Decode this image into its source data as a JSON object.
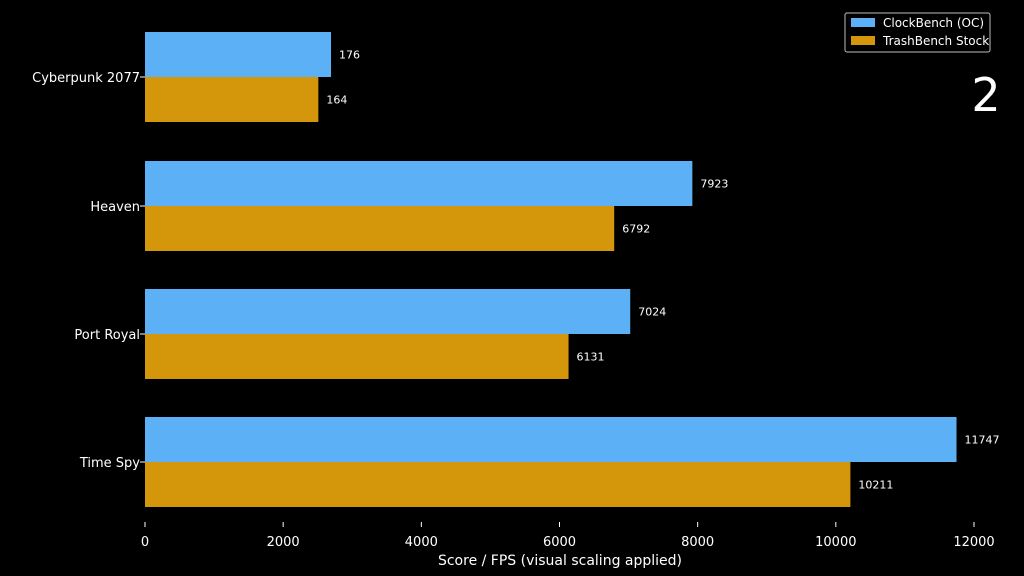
{
  "corner_label": "2",
  "chart_data": {
    "type": "bar",
    "orientation": "horizontal",
    "categories": [
      "Cyberpunk 2077",
      "Heaven",
      "Port Royal",
      "Time Spy"
    ],
    "series": [
      {
        "name": "ClockBench (OC)",
        "color": "#5cb0f6",
        "values": [
          176,
          7923,
          7024,
          11747
        ]
      },
      {
        "name": "TrashBench Stock",
        "color": "#d4960b",
        "values": [
          164,
          6792,
          6131,
          10211
        ]
      }
    ],
    "visual_scaling": {
      "Cyberpunk 2077": 15.3
    },
    "xlabel": "Score / FPS (visual scaling applied)",
    "xlim": [
      0,
      12000
    ],
    "xticks": [
      "0",
      "2000",
      "4000",
      "6000",
      "8000",
      "10000",
      "12000"
    ],
    "grid": false,
    "legend_position": "top-right",
    "background": "#000000"
  }
}
